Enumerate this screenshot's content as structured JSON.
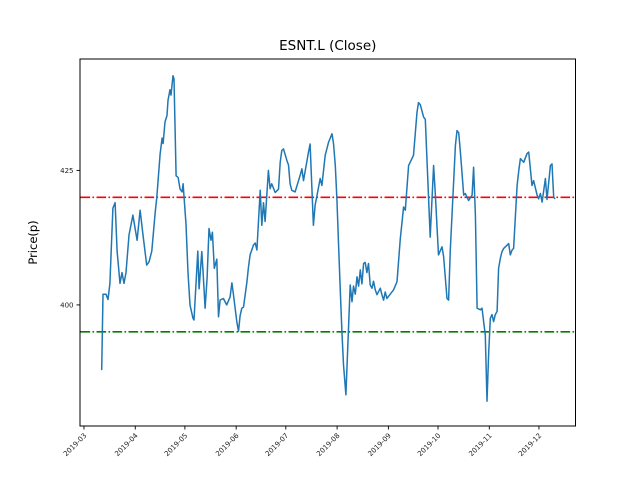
{
  "figure": {
    "background": "#ffffff"
  },
  "chart_data": {
    "type": "line",
    "title": "ESNT.L (Close)",
    "xlabel": "",
    "ylabel": "Price(p)",
    "grid": false,
    "legend": null,
    "x_unit": "days since 2019-03-01",
    "xlim_days": [
      -2.4,
      297.1
    ],
    "ylim": [
      377.5,
      445.7
    ],
    "y_ticks": [
      400,
      425
    ],
    "x_tick_days": [
      0,
      31,
      61,
      92,
      122,
      153,
      184,
      214,
      245,
      275
    ],
    "x_tick_labels": [
      "2019-03",
      "2019-04",
      "2019-05",
      "2019-06",
      "2019-07",
      "2019-08",
      "2019-09",
      "2019-10",
      "2019-11",
      "2019-12"
    ],
    "hlines": [
      {
        "name": "upper-threshold",
        "value": 420,
        "color": "#ff0000",
        "style": "dashdot"
      },
      {
        "name": "lower-threshold",
        "value": 395,
        "color": "#008000",
        "style": "dashdot"
      }
    ],
    "series": [
      {
        "name": "Close",
        "color": "#1f77b4",
        "points": [
          [
            10.7,
            388
          ],
          [
            11.5,
            402
          ],
          [
            13.3,
            402
          ],
          [
            14.5,
            401
          ],
          [
            15.7,
            404
          ],
          [
            17.5,
            418
          ],
          [
            18.8,
            419
          ],
          [
            20,
            410
          ],
          [
            21.8,
            404
          ],
          [
            23,
            406
          ],
          [
            24.2,
            404
          ],
          [
            25.4,
            406
          ],
          [
            27.2,
            413
          ],
          [
            29.6,
            416.7
          ],
          [
            31,
            414
          ],
          [
            32.1,
            412
          ],
          [
            33.9,
            417.6
          ],
          [
            35.7,
            413
          ],
          [
            37.9,
            407.4
          ],
          [
            39.3,
            408
          ],
          [
            41,
            410
          ],
          [
            43,
            417
          ],
          [
            44,
            420
          ],
          [
            46,
            428
          ],
          [
            47.2,
            431
          ],
          [
            47.8,
            430
          ],
          [
            49,
            434
          ],
          [
            50.2,
            435.2
          ],
          [
            50.8,
            438
          ],
          [
            52,
            440
          ],
          [
            52.6,
            439
          ],
          [
            53.8,
            442.6
          ],
          [
            54.4,
            442
          ],
          [
            55.7,
            424
          ],
          [
            56.9,
            423.7
          ],
          [
            58.1,
            421.5
          ],
          [
            59.3,
            421
          ],
          [
            59.9,
            422.5
          ],
          [
            61.7,
            415
          ],
          [
            62.9,
            406
          ],
          [
            64.1,
            400
          ],
          [
            65.9,
            397.5
          ],
          [
            66.5,
            397.2
          ],
          [
            68.8,
            410
          ],
          [
            69.6,
            403
          ],
          [
            71.2,
            409.9
          ],
          [
            72,
            406
          ],
          [
            73.2,
            399.4
          ],
          [
            74.4,
            405
          ],
          [
            75.6,
            414.2
          ],
          [
            76.8,
            412
          ],
          [
            77.6,
            413.5
          ],
          [
            78.8,
            406.8
          ],
          [
            80.3,
            408.5
          ],
          [
            81.3,
            397.8
          ],
          [
            82.3,
            400.9
          ],
          [
            84.3,
            401.2
          ],
          [
            86.3,
            400
          ],
          [
            88.3,
            401.5
          ],
          [
            89.4,
            404.1
          ],
          [
            90.3,
            402
          ],
          [
            92.4,
            396.9
          ],
          [
            93.4,
            395.1
          ],
          [
            94.4,
            398
          ],
          [
            95.4,
            399.4
          ],
          [
            96.4,
            399.6
          ],
          [
            98.4,
            404.1
          ],
          [
            99.4,
            406.9
          ],
          [
            100.4,
            409.3
          ],
          [
            102.4,
            411.1
          ],
          [
            103.5,
            411.5
          ],
          [
            104.5,
            410.2
          ],
          [
            106.5,
            421.3
          ],
          [
            107.5,
            414.8
          ],
          [
            108.5,
            419
          ],
          [
            109.5,
            415.5
          ],
          [
            111.5,
            425
          ],
          [
            112.5,
            421.6
          ],
          [
            113.5,
            422.5
          ],
          [
            115.6,
            420.9
          ],
          [
            117.6,
            421.5
          ],
          [
            118.6,
            426.5
          ],
          [
            119.6,
            428.7
          ],
          [
            120.6,
            429
          ],
          [
            122.6,
            426.9
          ],
          [
            123.6,
            426
          ],
          [
            124.6,
            422.5
          ],
          [
            125.6,
            421.3
          ],
          [
            127.6,
            421
          ],
          [
            130.7,
            424.1
          ],
          [
            131.7,
            425.3
          ],
          [
            132.7,
            423.1
          ],
          [
            135.7,
            428.4
          ],
          [
            136.7,
            429.9
          ],
          [
            138.7,
            414.8
          ],
          [
            139.7,
            418.5
          ],
          [
            142.8,
            423.5
          ],
          [
            143.8,
            422.2
          ],
          [
            145.8,
            427.8
          ],
          [
            147.8,
            430.2
          ],
          [
            149.9,
            431.8
          ],
          [
            150.8,
            430
          ],
          [
            151.9,
            425.9
          ],
          [
            152.9,
            419.7
          ],
          [
            153.8,
            412
          ],
          [
            154.9,
            403.1
          ],
          [
            155.9,
            395.1
          ],
          [
            156.9,
            388.9
          ],
          [
            158.3,
            383.3
          ],
          [
            160.9,
            403.7
          ],
          [
            162,
            400.6
          ],
          [
            162.9,
            403.5
          ],
          [
            164,
            402
          ],
          [
            165,
            405.2
          ],
          [
            166,
            403.5
          ],
          [
            167,
            406.5
          ],
          [
            168,
            403.9
          ],
          [
            169,
            407.7
          ],
          [
            170,
            407.9
          ],
          [
            171,
            406
          ],
          [
            172,
            407.7
          ],
          [
            173,
            403.7
          ],
          [
            174.1,
            403.1
          ],
          [
            175,
            404.4
          ],
          [
            176.1,
            402.8
          ],
          [
            177.1,
            401.9
          ],
          [
            179.1,
            403.1
          ],
          [
            180.1,
            401.9
          ],
          [
            181.1,
            400.9
          ],
          [
            182.1,
            402.4
          ],
          [
            183.1,
            401.2
          ],
          [
            185.1,
            402
          ],
          [
            187.1,
            402.8
          ],
          [
            189.2,
            404.3
          ],
          [
            191.2,
            412.3
          ],
          [
            193.2,
            418.2
          ],
          [
            194.2,
            417.6
          ],
          [
            196.2,
            425.9
          ],
          [
            197.2,
            426.5
          ],
          [
            199.2,
            427.8
          ],
          [
            201.3,
            435.8
          ],
          [
            202.2,
            437.6
          ],
          [
            203.3,
            437.2
          ],
          [
            205.3,
            434.9
          ],
          [
            206.3,
            434.5
          ],
          [
            208.3,
            419.7
          ],
          [
            209.3,
            412.6
          ],
          [
            211.3,
            425.9
          ],
          [
            212.4,
            420.3
          ],
          [
            214.3,
            409.3
          ],
          [
            216.4,
            410.8
          ],
          [
            217.4,
            409
          ],
          [
            219.4,
            401.2
          ],
          [
            220.4,
            400.9
          ],
          [
            221.4,
            410.2
          ],
          [
            224.5,
            429.6
          ],
          [
            225.5,
            432.4
          ],
          [
            226.5,
            432
          ],
          [
            227.5,
            428.4
          ],
          [
            229.5,
            420.4
          ],
          [
            230.5,
            420.7
          ],
          [
            232.5,
            419.4
          ],
          [
            234.6,
            420.4
          ],
          [
            235.5,
            425.6
          ],
          [
            236.6,
            416.7
          ],
          [
            237.6,
            399.4
          ],
          [
            239.6,
            399.1
          ],
          [
            240.6,
            399.4
          ],
          [
            242.6,
            394.4
          ],
          [
            243.6,
            382.1
          ],
          [
            244.6,
            390.7
          ],
          [
            245.6,
            397.5
          ],
          [
            246.6,
            398.2
          ],
          [
            247.6,
            396.9
          ],
          [
            248.6,
            398.2
          ],
          [
            249.7,
            398.8
          ],
          [
            250.6,
            406.8
          ],
          [
            251.7,
            408.7
          ],
          [
            252.7,
            409.9
          ],
          [
            253.7,
            410.5
          ],
          [
            254.7,
            410.8
          ],
          [
            256.7,
            411.4
          ],
          [
            257.7,
            409.3
          ],
          [
            258.8,
            410.2
          ],
          [
            259.7,
            410.5
          ],
          [
            261.8,
            422.2
          ],
          [
            262.8,
            425
          ],
          [
            263.8,
            427.2
          ],
          [
            265.8,
            426.5
          ],
          [
            267.8,
            428.1
          ],
          [
            268.8,
            428.4
          ],
          [
            270.8,
            422.2
          ],
          [
            271.8,
            423.1
          ],
          [
            273.9,
            420.4
          ],
          [
            274.8,
            419.7
          ],
          [
            275.9,
            420.7
          ],
          [
            276.9,
            419.1
          ],
          [
            278.9,
            423.5
          ],
          [
            279.9,
            419.6
          ],
          [
            281.9,
            425.9
          ],
          [
            282.9,
            426.2
          ],
          [
            283.9,
            420
          ],
          [
            284.5,
            419.8
          ]
        ]
      }
    ]
  }
}
